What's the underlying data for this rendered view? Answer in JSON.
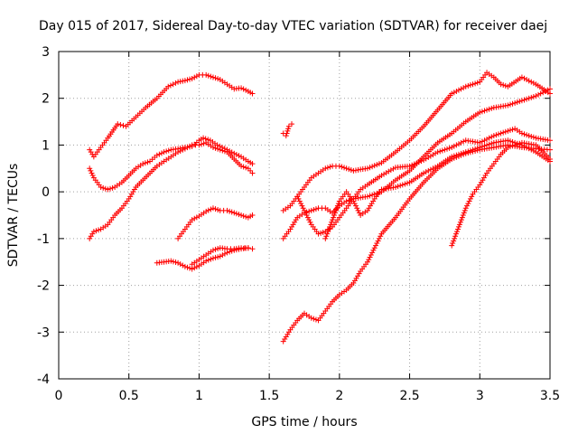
{
  "chart_data": {
    "type": "scatter",
    "title": "Day 015 of 2017, Sidereal Day-to-day VTEC variation (SDTVAR) for receiver daej",
    "xlabel": "GPS time / hours",
    "ylabel": "SDTVAR / TECUs",
    "xlim": [
      0,
      3.5
    ],
    "ylim": [
      -4,
      3
    ],
    "xticks": [
      0,
      0.5,
      1,
      1.5,
      2,
      2.5,
      3,
      3.5
    ],
    "xtick_labels": [
      "0",
      "0.5",
      "1",
      "1.5",
      "2",
      "2.5",
      "3",
      "3.5"
    ],
    "yticks": [
      -4,
      -3,
      -2,
      -1,
      0,
      1,
      2,
      3
    ],
    "ytick_labels": [
      "-4",
      "-3",
      "-2",
      "-1",
      "0",
      "1",
      "2",
      "3"
    ],
    "grid": true,
    "marker": "plus",
    "color": "#ff0000",
    "series": [
      {
        "x": [
          0.22,
          0.25,
          0.3,
          0.35,
          0.42,
          0.48,
          0.55,
          0.62,
          0.7,
          0.78,
          0.85,
          0.9,
          0.95,
          1.0,
          1.05,
          1.1,
          1.15,
          1.2,
          1.25,
          1.3,
          1.35,
          1.38
        ],
        "y": [
          0.9,
          0.75,
          0.95,
          1.15,
          1.45,
          1.4,
          1.6,
          1.8,
          2.0,
          2.25,
          2.35,
          2.38,
          2.42,
          2.5,
          2.5,
          2.45,
          2.4,
          2.3,
          2.2,
          2.22,
          2.15,
          2.1
        ]
      },
      {
        "x": [
          0.22,
          0.25,
          0.3,
          0.35,
          0.4,
          0.45,
          0.5,
          0.55,
          0.6,
          0.65,
          0.7,
          0.75,
          0.8,
          0.85,
          0.9,
          0.95,
          1.0,
          1.03,
          1.08,
          1.13,
          1.2,
          1.25,
          1.3,
          1.35,
          1.38
        ],
        "y": [
          0.5,
          0.3,
          0.1,
          0.05,
          0.1,
          0.2,
          0.35,
          0.5,
          0.6,
          0.65,
          0.78,
          0.85,
          0.9,
          0.92,
          0.95,
          0.97,
          1.1,
          1.15,
          1.1,
          1.0,
          0.9,
          0.82,
          0.75,
          0.65,
          0.6
        ]
      },
      {
        "x": [
          0.22,
          0.25,
          0.3,
          0.35,
          0.4,
          0.45,
          0.5,
          0.55,
          0.6,
          0.65,
          0.7,
          0.75,
          0.8,
          0.85,
          0.9,
          0.95,
          1.0,
          1.05,
          1.1,
          1.15,
          1.2,
          1.25,
          1.3,
          1.35,
          1.38
        ],
        "y": [
          -1.0,
          -0.85,
          -0.8,
          -0.7,
          -0.5,
          -0.35,
          -0.15,
          0.1,
          0.25,
          0.4,
          0.55,
          0.65,
          0.75,
          0.85,
          0.92,
          1.0,
          1.0,
          1.05,
          0.95,
          0.9,
          0.85,
          0.7,
          0.55,
          0.5,
          0.4
        ]
      },
      {
        "x": [
          0.85,
          0.9,
          0.95,
          1.0,
          1.05,
          1.1,
          1.15,
          1.2,
          1.25,
          1.3,
          1.35,
          1.38
        ],
        "y": [
          -1.0,
          -0.8,
          -0.6,
          -0.52,
          -0.42,
          -0.35,
          -0.4,
          -0.4,
          -0.45,
          -0.5,
          -0.55,
          -0.5
        ]
      },
      {
        "x": [
          0.7,
          0.75,
          0.8,
          0.85,
          0.9,
          0.95,
          1.0,
          1.05,
          1.1,
          1.15,
          1.2,
          1.25,
          1.3,
          1.35,
          1.38
        ],
        "y": [
          -1.52,
          -1.5,
          -1.48,
          -1.52,
          -1.6,
          -1.65,
          -1.58,
          -1.48,
          -1.42,
          -1.38,
          -1.3,
          -1.25,
          -1.22,
          -1.2,
          -1.22
        ]
      },
      {
        "x": [
          0.95,
          1.0,
          1.05,
          1.1,
          1.15,
          1.2,
          1.25,
          1.3,
          1.35
        ],
        "y": [
          -1.55,
          -1.45,
          -1.35,
          -1.25,
          -1.2,
          -1.22,
          -1.22,
          -1.2,
          -1.2
        ]
      },
      {
        "x": [
          1.6,
          1.62,
          1.64,
          1.66
        ],
        "y": [
          1.25,
          1.2,
          1.4,
          1.45
        ]
      },
      {
        "x": [
          1.6,
          1.65,
          1.7,
          1.75,
          1.8,
          1.85,
          1.9,
          1.95,
          2.0,
          2.05,
          2.1,
          2.15,
          2.2,
          2.3,
          2.4,
          2.5,
          2.6,
          2.7,
          2.8,
          2.9,
          3.0,
          3.05,
          3.1,
          3.15,
          3.2,
          3.3,
          3.4,
          3.5
        ],
        "y": [
          -0.4,
          -0.3,
          -0.1,
          0.1,
          0.3,
          0.4,
          0.5,
          0.55,
          0.55,
          0.5,
          0.45,
          0.48,
          0.5,
          0.62,
          0.85,
          1.1,
          1.4,
          1.75,
          2.1,
          2.25,
          2.35,
          2.55,
          2.45,
          2.3,
          2.25,
          2.45,
          2.3,
          2.1
        ]
      },
      {
        "x": [
          1.6,
          1.65,
          1.7,
          1.75,
          1.8,
          1.85,
          1.9,
          1.95,
          2.0,
          2.05,
          2.1,
          2.2,
          2.3,
          2.4,
          2.5,
          2.6,
          2.7,
          2.8,
          2.9,
          3.0,
          3.1,
          3.2,
          3.3,
          3.4,
          3.5
        ],
        "y": [
          -1.0,
          -0.8,
          -0.55,
          -0.45,
          -0.4,
          -0.35,
          -0.35,
          -0.45,
          -0.3,
          -0.2,
          -0.15,
          -0.1,
          0.0,
          0.25,
          0.45,
          0.75,
          1.05,
          1.25,
          1.5,
          1.7,
          1.8,
          1.85,
          1.95,
          2.05,
          2.2
        ]
      },
      {
        "x": [
          1.6,
          1.65,
          1.7,
          1.75,
          1.8,
          1.85,
          1.9,
          1.95,
          2.0,
          2.05,
          2.1,
          2.15,
          2.2,
          2.25,
          2.3,
          2.4,
          2.5,
          2.6,
          2.7,
          2.8,
          2.9,
          3.0,
          3.1,
          3.2,
          3.3,
          3.4,
          3.5
        ],
        "y": [
          -3.2,
          -2.95,
          -2.75,
          -2.6,
          -2.7,
          -2.75,
          -2.55,
          -2.35,
          -2.2,
          -2.1,
          -1.95,
          -1.7,
          -1.5,
          -1.2,
          -0.9,
          -0.55,
          -0.15,
          0.2,
          0.5,
          0.7,
          0.82,
          0.9,
          0.95,
          1.0,
          0.95,
          0.92,
          0.9
        ]
      },
      {
        "x": [
          1.7,
          1.75,
          1.8,
          1.85,
          1.9,
          1.95,
          2.0,
          2.05,
          2.1,
          2.15,
          2.2,
          2.3,
          2.4,
          2.5,
          2.6,
          2.7,
          2.8,
          2.9,
          3.0,
          3.1,
          3.2,
          3.25,
          3.3,
          3.4,
          3.5
        ],
        "y": [
          -0.1,
          -0.4,
          -0.7,
          -0.9,
          -0.85,
          -0.75,
          -0.55,
          -0.35,
          -0.15,
          0.05,
          0.15,
          0.35,
          0.52,
          0.55,
          0.68,
          0.85,
          0.95,
          1.1,
          1.05,
          1.2,
          1.3,
          1.35,
          1.25,
          1.15,
          1.1
        ]
      },
      {
        "x": [
          1.9,
          1.95,
          2.0,
          2.05,
          2.1,
          2.15,
          2.2,
          2.25,
          2.3,
          2.4,
          2.5,
          2.6,
          2.7,
          2.8,
          2.9,
          3.0,
          3.1,
          3.2,
          3.3,
          3.4,
          3.5
        ],
        "y": [
          -1.0,
          -0.6,
          -0.2,
          0.0,
          -0.2,
          -0.5,
          -0.4,
          -0.15,
          0.05,
          0.1,
          0.2,
          0.4,
          0.55,
          0.75,
          0.85,
          0.95,
          1.05,
          1.1,
          1.0,
          0.85,
          0.65
        ]
      },
      {
        "x": [
          2.8,
          2.85,
          2.9,
          2.95,
          3.0,
          3.05,
          3.1,
          3.15,
          3.2,
          3.3,
          3.4,
          3.5
        ],
        "y": [
          -1.15,
          -0.75,
          -0.35,
          -0.05,
          0.15,
          0.4,
          0.6,
          0.8,
          0.95,
          1.05,
          1.0,
          0.7
        ]
      }
    ]
  }
}
